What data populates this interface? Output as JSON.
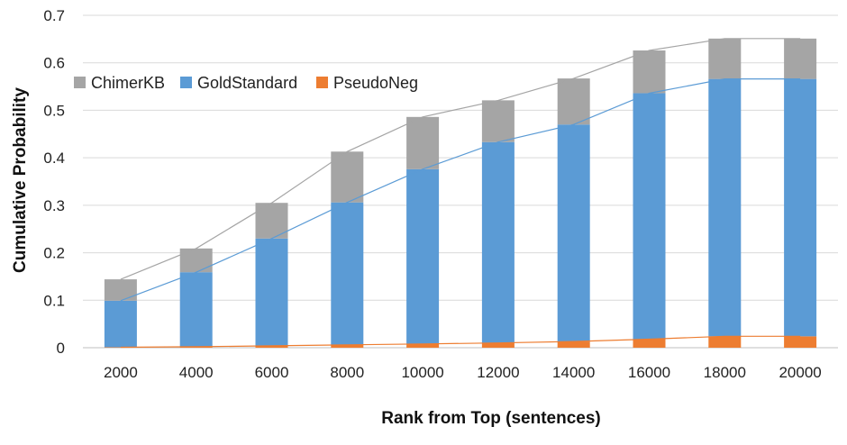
{
  "chart_data": {
    "type": "bar",
    "stacked": true,
    "categories": [
      "2000",
      "4000",
      "6000",
      "8000",
      "10000",
      "12000",
      "14000",
      "16000",
      "18000",
      "20000"
    ],
    "series": [
      {
        "name": "ChimerKB",
        "color": "#A5A5A5",
        "values": [
          0.045,
          0.05,
          0.075,
          0.107,
          0.11,
          0.088,
          0.097,
          0.09,
          0.085,
          0.085
        ]
      },
      {
        "name": "GoldStandard",
        "color": "#5B9BD5",
        "values": [
          0.098,
          0.157,
          0.226,
          0.3,
          0.368,
          0.423,
          0.457,
          0.518,
          0.542,
          0.542
        ]
      },
      {
        "name": "PseudoNeg",
        "color": "#ED7D31",
        "values": [
          0.001,
          0.002,
          0.004,
          0.006,
          0.008,
          0.01,
          0.013,
          0.018,
          0.024,
          0.024
        ]
      }
    ],
    "trend_lines": [
      "cumulative totals per stack level"
    ],
    "xlabel": "Rank from Top (sentences)",
    "ylabel": "Cumulative Probability",
    "ylim": [
      0,
      0.7
    ],
    "yticks": [
      "0",
      "0.1",
      "0.2",
      "0.3",
      "0.4",
      "0.5",
      "0.6",
      "0.7"
    ],
    "grid": true,
    "legend_position": "top-left"
  }
}
